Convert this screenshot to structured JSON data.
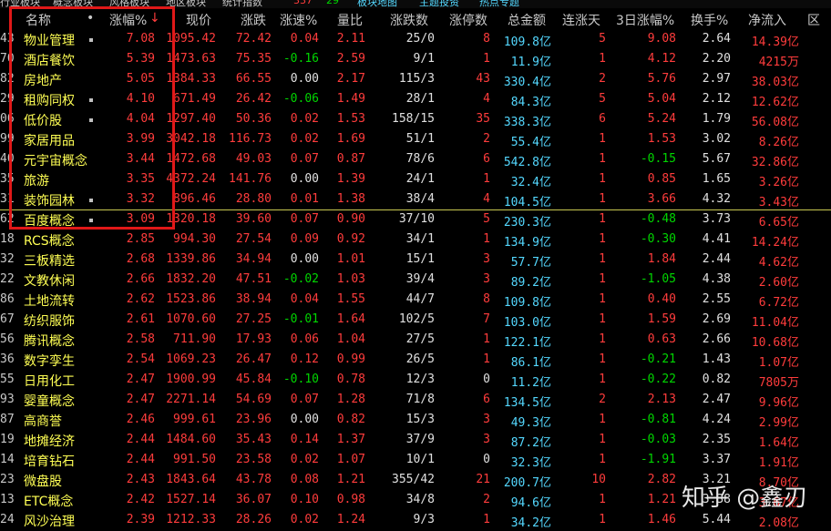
{
  "topbar": {
    "items": [
      {
        "label": "行业板块",
        "color": "#c8c8c8"
      },
      {
        "label": "概念板块",
        "color": "#c8c8c8"
      },
      {
        "label": "风格板块",
        "color": "#c8c8c8"
      },
      {
        "label": "地区板块",
        "color": "#c8c8c8"
      },
      {
        "label": "统计指数",
        "color": "#c8c8c8"
      },
      {
        "label": "337",
        "color": "#ff3c3c"
      },
      {
        "label": "29",
        "color": "#00d600"
      },
      {
        "label": "板块地图",
        "color": "#54d8ff"
      },
      {
        "label": "主题投资",
        "color": "#54d8ff"
      },
      {
        "label": "热点专题",
        "color": "#54d8ff"
      }
    ]
  },
  "columns": [
    "名称",
    "涨幅%",
    "现价",
    "涨跌",
    "涨速%",
    "量比",
    "涨跌数",
    "涨停数",
    "总金额",
    "连涨天",
    "3日涨幅%",
    "换手%",
    "净流入",
    "区"
  ],
  "sort_arrow": "↓",
  "rows": [
    {
      "code": "43",
      "name": "物业管理",
      "pct": "7.08",
      "price": "1095.42",
      "chg": "72.42",
      "speed": "0.04",
      "vr": "2.11",
      "ud": "25/0",
      "limit": "8",
      "amt": "109.8亿",
      "days": "5",
      "pct3": "9.08",
      "turn": "2.64",
      "flow": "14.39亿",
      "dot": true
    },
    {
      "code": "70",
      "name": "酒店餐饮",
      "pct": "5.39",
      "price": "1473.63",
      "chg": "75.35",
      "speed": "-0.16",
      "vr": "2.59",
      "ud": "9/1",
      "limit": "1",
      "amt": "11.9亿",
      "days": "1",
      "pct3": "4.12",
      "turn": "2.20",
      "flow": "4215万",
      "dot": false
    },
    {
      "code": "82",
      "name": "房地产",
      "pct": "5.05",
      "price": "1384.33",
      "chg": "66.55",
      "speed": "0.00",
      "vr": "2.17",
      "ud": "115/3",
      "limit": "43",
      "amt": "330.4亿",
      "days": "2",
      "pct3": "5.76",
      "turn": "2.97",
      "flow": "38.03亿",
      "dot": false
    },
    {
      "code": "29",
      "name": "租购同权",
      "pct": "4.10",
      "price": "671.49",
      "chg": "26.42",
      "speed": "-0.06",
      "vr": "1.49",
      "ud": "28/1",
      "limit": "4",
      "amt": "84.3亿",
      "days": "5",
      "pct3": "5.04",
      "turn": "2.12",
      "flow": "12.62亿",
      "dot": true
    },
    {
      "code": "06",
      "name": "低价股",
      "pct": "4.04",
      "price": "1297.40",
      "chg": "50.36",
      "speed": "0.02",
      "vr": "1.53",
      "ud": "158/15",
      "limit": "35",
      "amt": "338.3亿",
      "days": "6",
      "pct3": "5.24",
      "turn": "1.79",
      "flow": "56.08亿",
      "dot": true
    },
    {
      "code": "99",
      "name": "家居用品",
      "pct": "3.99",
      "price": "3042.18",
      "chg": "116.73",
      "speed": "0.02",
      "vr": "1.69",
      "ud": "51/1",
      "limit": "2",
      "amt": "55.4亿",
      "days": "1",
      "pct3": "1.53",
      "turn": "3.02",
      "flow": "8.26亿",
      "dot": false
    },
    {
      "code": "40",
      "name": "元宇宙概念",
      "pct": "3.44",
      "price": "1472.68",
      "chg": "49.03",
      "speed": "0.07",
      "vr": "0.87",
      "ud": "78/6",
      "limit": "6",
      "amt": "542.8亿",
      "days": "1",
      "pct3": "-0.15",
      "turn": "5.67",
      "flow": "32.86亿",
      "dot": false
    },
    {
      "code": "35",
      "name": "旅游",
      "pct": "3.35",
      "price": "4372.24",
      "chg": "141.76",
      "speed": "0.00",
      "vr": "1.39",
      "ud": "24/1",
      "limit": "1",
      "amt": "32.4亿",
      "days": "1",
      "pct3": "0.85",
      "turn": "1.65",
      "flow": "3.26亿",
      "dot": false
    },
    {
      "code": "31",
      "name": "装饰园林",
      "pct": "3.32",
      "price": "896.46",
      "chg": "28.80",
      "speed": "0.01",
      "vr": "1.38",
      "ud": "38/4",
      "limit": "4",
      "amt": "104.5亿",
      "days": "1",
      "pct3": "3.66",
      "turn": "4.32",
      "flow": "3.43亿",
      "dot": true
    },
    {
      "code": "62",
      "name": "百度概念",
      "pct": "3.09",
      "price": "1320.18",
      "chg": "39.60",
      "speed": "0.07",
      "vr": "0.90",
      "ud": "37/10",
      "limit": "5",
      "amt": "230.3亿",
      "days": "1",
      "pct3": "-0.48",
      "turn": "3.73",
      "flow": "6.65亿",
      "dot": true
    },
    {
      "code": "18",
      "name": "RCS概念",
      "pct": "2.85",
      "price": "994.30",
      "chg": "27.54",
      "speed": "0.09",
      "vr": "0.92",
      "ud": "34/1",
      "limit": "1",
      "amt": "134.9亿",
      "days": "1",
      "pct3": "-0.30",
      "turn": "4.41",
      "flow": "14.24亿",
      "dot": false
    },
    {
      "code": "32",
      "name": "三板精选",
      "pct": "2.68",
      "price": "1339.86",
      "chg": "34.94",
      "speed": "0.00",
      "vr": "1.01",
      "ud": "15/1",
      "limit": "3",
      "amt": "57.7亿",
      "days": "1",
      "pct3": "1.84",
      "turn": "2.44",
      "flow": "4.62亿",
      "dot": false
    },
    {
      "code": "22",
      "name": "文教休闲",
      "pct": "2.66",
      "price": "1832.20",
      "chg": "47.51",
      "speed": "-0.02",
      "vr": "1.03",
      "ud": "39/4",
      "limit": "3",
      "amt": "89.2亿",
      "days": "1",
      "pct3": "-1.05",
      "turn": "4.38",
      "flow": "2.60亿",
      "dot": false
    },
    {
      "code": "86",
      "name": "土地流转",
      "pct": "2.62",
      "price": "1523.86",
      "chg": "38.94",
      "speed": "0.04",
      "vr": "1.55",
      "ud": "44/7",
      "limit": "8",
      "amt": "109.8亿",
      "days": "1",
      "pct3": "0.40",
      "turn": "2.55",
      "flow": "6.72亿",
      "dot": false
    },
    {
      "code": "67",
      "name": "纺织服饰",
      "pct": "2.61",
      "price": "1070.60",
      "chg": "27.25",
      "speed": "-0.01",
      "vr": "1.64",
      "ud": "102/5",
      "limit": "7",
      "amt": "103.0亿",
      "days": "1",
      "pct3": "1.59",
      "turn": "2.69",
      "flow": "11.04亿",
      "dot": false
    },
    {
      "code": "56",
      "name": "腾讯概念",
      "pct": "2.58",
      "price": "711.90",
      "chg": "17.93",
      "speed": "0.06",
      "vr": "1.04",
      "ud": "27/5",
      "limit": "1",
      "amt": "122.1亿",
      "days": "1",
      "pct3": "0.63",
      "turn": "2.66",
      "flow": "10.68亿",
      "dot": false
    },
    {
      "code": "36",
      "name": "数字孪生",
      "pct": "2.54",
      "price": "1069.23",
      "chg": "26.47",
      "speed": "0.12",
      "vr": "0.99",
      "ud": "26/5",
      "limit": "1",
      "amt": "86.1亿",
      "days": "1",
      "pct3": "-0.21",
      "turn": "1.43",
      "flow": "1.07亿",
      "dot": false
    },
    {
      "code": "55",
      "name": "日用化工",
      "pct": "2.47",
      "price": "1900.99",
      "chg": "45.84",
      "speed": "-0.10",
      "vr": "0.78",
      "ud": "12/3",
      "limit": "0",
      "amt": "11.2亿",
      "days": "1",
      "pct3": "-0.22",
      "turn": "0.82",
      "flow": "7805万",
      "dot": false
    },
    {
      "code": "93",
      "name": "婴童概念",
      "pct": "2.47",
      "price": "2271.14",
      "chg": "54.69",
      "speed": "0.07",
      "vr": "1.28",
      "ud": "71/8",
      "limit": "6",
      "amt": "134.5亿",
      "days": "2",
      "pct3": "2.13",
      "turn": "2.47",
      "flow": "9.96亿",
      "dot": false
    },
    {
      "code": "87",
      "name": "高商誉",
      "pct": "2.46",
      "price": "999.61",
      "chg": "23.96",
      "speed": "0.00",
      "vr": "0.82",
      "ud": "15/3",
      "limit": "3",
      "amt": "49.3亿",
      "days": "1",
      "pct3": "-0.81",
      "turn": "4.24",
      "flow": "2.99亿",
      "dot": false
    },
    {
      "code": "19",
      "name": "地摊经济",
      "pct": "2.44",
      "price": "1484.60",
      "chg": "35.43",
      "speed": "0.14",
      "vr": "1.37",
      "ud": "37/9",
      "limit": "3",
      "amt": "87.2亿",
      "days": "1",
      "pct3": "-0.03",
      "turn": "2.35",
      "flow": "1.64亿",
      "dot": false
    },
    {
      "code": "14",
      "name": "培育钻石",
      "pct": "2.44",
      "price": "991.50",
      "chg": "23.58",
      "speed": "0.02",
      "vr": "1.07",
      "ud": "10/1",
      "limit": "0",
      "amt": "32.3亿",
      "days": "1",
      "pct3": "-1.91",
      "turn": "3.37",
      "flow": "1.91亿",
      "dot": false
    },
    {
      "code": "23",
      "name": "微盘股",
      "pct": "2.43",
      "price": "1843.64",
      "chg": "43.78",
      "speed": "0.08",
      "vr": "1.21",
      "ud": "355/42",
      "limit": "21",
      "amt": "200.7亿",
      "days": "10",
      "pct3": "2.82",
      "turn": "3.21",
      "flow": "8.70亿",
      "dot": false
    },
    {
      "code": "13",
      "name": "ETC概念",
      "pct": "2.42",
      "price": "1527.14",
      "chg": "36.07",
      "speed": "0.10",
      "vr": "0.98",
      "ud": "34/8",
      "limit": "2",
      "amt": "94.6亿",
      "days": "1",
      "pct3": "1.21",
      "turn": "3.38",
      "flow": "3.67亿",
      "dot": false
    },
    {
      "code": "24",
      "name": "风沙治理",
      "pct": "2.39",
      "price": "1212.33",
      "chg": "28.26",
      "speed": "0.02",
      "vr": "1.24",
      "ud": "9/3",
      "limit": "1",
      "amt": "34.2亿",
      "days": "1",
      "pct3": "1.46",
      "turn": "5.44",
      "flow": "2.08亿",
      "dot": false
    }
  ],
  "watermark": "知乎 @鑫刃",
  "colors": {
    "up": "#ff3c3c",
    "down": "#00d600",
    "name": "#ffff54",
    "amount": "#54d8ff",
    "highlight": "#e01818"
  }
}
